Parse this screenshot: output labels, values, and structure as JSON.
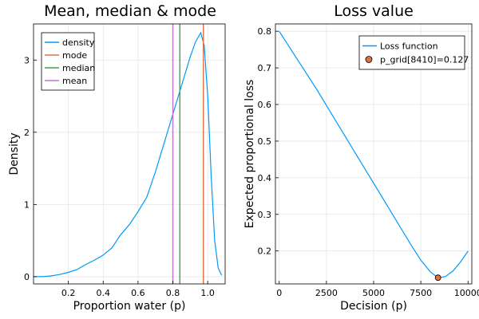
{
  "chart_data": [
    {
      "type": "line",
      "title": "Mean, median & mode",
      "xlabel": "Proportion water (p)",
      "ylabel": "Density",
      "xlim": [
        0.0,
        1.1
      ],
      "ylim": [
        -0.1,
        3.5
      ],
      "xticks": [
        0.2,
        0.4,
        0.6,
        0.8,
        1.0
      ],
      "xtick_labels": [
        "0.2",
        "0.4",
        "0.6",
        "0.8",
        "1.0"
      ],
      "yticks": [
        0,
        1,
        2,
        3
      ],
      "ytick_labels": [
        "0",
        "1",
        "2",
        "3"
      ],
      "grid": true,
      "legend_position": "top-left",
      "series": [
        {
          "name": "density",
          "color": "#009AFA",
          "x": [
            0.0,
            0.05,
            0.1,
            0.15,
            0.2,
            0.25,
            0.3,
            0.35,
            0.4,
            0.45,
            0.5,
            0.55,
            0.6,
            0.65,
            0.7,
            0.75,
            0.8,
            0.85,
            0.9,
            0.93,
            0.96,
            0.98,
            1.0,
            1.02,
            1.04,
            1.06,
            1.08
          ],
          "y": [
            0.0,
            0.0,
            0.01,
            0.03,
            0.06,
            0.1,
            0.17,
            0.23,
            0.3,
            0.4,
            0.58,
            0.72,
            0.9,
            1.1,
            1.45,
            1.85,
            2.25,
            2.65,
            3.05,
            3.25,
            3.38,
            3.2,
            2.5,
            1.4,
            0.5,
            0.12,
            0.02
          ]
        },
        {
          "name": "mode",
          "color": "#E26F46",
          "vline": 0.975
        },
        {
          "name": "median",
          "color": "#3DA44D",
          "vline": 0.84
        },
        {
          "name": "mean",
          "color": "#C271D2",
          "vline": 0.8
        }
      ]
    },
    {
      "type": "line",
      "title": "Loss value",
      "xlabel": "Decision (p)",
      "ylabel": "Expected proportional loss",
      "xlim": [
        -200,
        10200
      ],
      "ylim": [
        0.11,
        0.82
      ],
      "xticks": [
        0,
        2500,
        5000,
        7500,
        10000
      ],
      "xtick_labels": [
        "0",
        "2500",
        "5000",
        "7500",
        "10000"
      ],
      "yticks": [
        0.2,
        0.3,
        0.4,
        0.5,
        0.6,
        0.7,
        0.8
      ],
      "ytick_labels": [
        "0.2",
        "0.3",
        "0.4",
        "0.5",
        "0.6",
        "0.7",
        "0.8"
      ],
      "grid": true,
      "legend_position": "top-right",
      "series": [
        {
          "name": "Loss function",
          "color": "#009AFA",
          "x": [
            0,
            1000,
            2000,
            3000,
            4000,
            5000,
            6000,
            7000,
            7500,
            8000,
            8410,
            8800,
            9200,
            9600,
            10000
          ],
          "y": [
            0.8,
            0.72,
            0.64,
            0.555,
            0.47,
            0.385,
            0.3,
            0.215,
            0.175,
            0.143,
            0.127,
            0.13,
            0.145,
            0.17,
            0.2
          ]
        },
        {
          "name": "p_grid[8410]=0.127",
          "color": "#E26F46",
          "points": [
            {
              "x": 8410,
              "y": 0.127
            }
          ]
        }
      ]
    }
  ]
}
